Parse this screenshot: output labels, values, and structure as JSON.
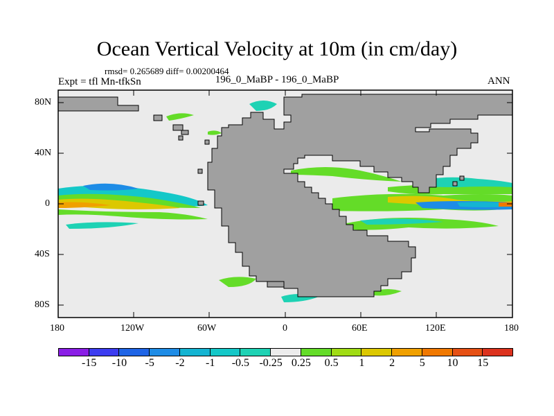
{
  "plot": {
    "title": "Ocean Vertical Velocity at 10m (in cm/day)",
    "stats": "rmsd= 0.265689 diff= 0.00200464",
    "experiment": "Expt = tfl Mn-tfkSn",
    "cases": "196_0_MaBP - 196_0_MaBP",
    "season": "ANN"
  },
  "axes": {
    "y_ticks": [
      "80N",
      "40N",
      "0",
      "40S",
      "80S"
    ],
    "x_ticks": [
      "180",
      "120W",
      "60W",
      "0",
      "60E",
      "120E",
      "180"
    ]
  },
  "colors": {
    "land": "#a0a0a0",
    "ocean_neutral": "#ebebeb"
  },
  "colorbar": {
    "levels": [
      "-15",
      "-10",
      "-5",
      "-2",
      "-1",
      "-0.5",
      "-0.25",
      "0.25",
      "0.5",
      "1",
      "2",
      "5",
      "10",
      "15"
    ],
    "colors": [
      "#8a1ee6",
      "#3c3cf0",
      "#1e64e6",
      "#1e8ce6",
      "#14b4d2",
      "#14c8c8",
      "#1ed2b4",
      "#ececec",
      "#64dc28",
      "#a0dc14",
      "#dcc800",
      "#f0a000",
      "#f07800",
      "#e65014",
      "#dc321e"
    ]
  }
}
